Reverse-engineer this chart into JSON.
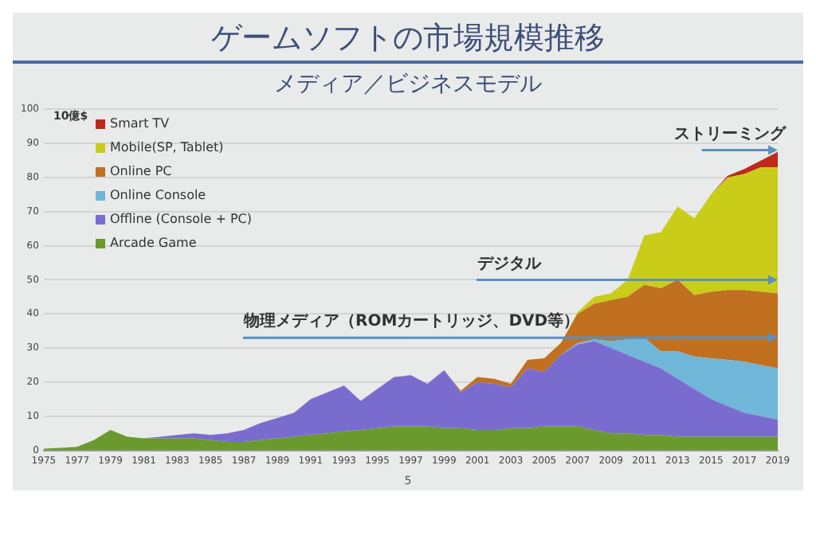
{
  "chart_data": {
    "type": "area",
    "title": "ゲームソフトの市場規模推移",
    "subtitle": "メディア／ビジネスモデル",
    "ylabel": "10億$",
    "stacked": true,
    "x": [
      1975,
      1976,
      1977,
      1978,
      1979,
      1980,
      1981,
      1982,
      1983,
      1984,
      1985,
      1986,
      1987,
      1988,
      1989,
      1990,
      1991,
      1992,
      1993,
      1994,
      1995,
      1996,
      1997,
      1998,
      1999,
      2000,
      2001,
      2002,
      2003,
      2004,
      2005,
      2006,
      2007,
      2008,
      2009,
      2010,
      2011,
      2012,
      2013,
      2014,
      2015,
      2016,
      2017,
      2018,
      2019
    ],
    "xlim": [
      1975,
      2019
    ],
    "xticks": [
      1975,
      1977,
      1979,
      1981,
      1983,
      1985,
      1987,
      1989,
      1991,
      1993,
      1995,
      1997,
      1999,
      2001,
      2003,
      2005,
      2007,
      2009,
      2011,
      2013,
      2015,
      2017,
      2019
    ],
    "ylim": [
      0,
      100
    ],
    "yticks": [
      0,
      10,
      20,
      30,
      40,
      50,
      60,
      70,
      80,
      90,
      100
    ],
    "grid": "y",
    "legend": "top left",
    "series": [
      {
        "name": "Arcade Game",
        "color": "#6a9a2e",
        "values": [
          0.5,
          0.7,
          1,
          3,
          6,
          4,
          3.5,
          3.5,
          3.5,
          3.5,
          3,
          2.5,
          2.5,
          3,
          3.5,
          4,
          4.5,
          5,
          5.5,
          6,
          6.5,
          7,
          7,
          7,
          6.5,
          6.5,
          6,
          6,
          6.5,
          6.5,
          7,
          7,
          7,
          6,
          5,
          5,
          4.5,
          4.5,
          4,
          4,
          4,
          4,
          4,
          4,
          4
        ]
      },
      {
        "name": "Offline (Console + PC)",
        "color": "#7a6ccf",
        "values": [
          0,
          0,
          0,
          0,
          0,
          0,
          0,
          0.5,
          1,
          1.5,
          1.5,
          2.5,
          3.5,
          5,
          6,
          7,
          10.5,
          12,
          13.5,
          8.5,
          11.5,
          14.5,
          15,
          12.5,
          17,
          10.5,
          14,
          13.5,
          12,
          17.5,
          16,
          21,
          24,
          26,
          25,
          23,
          21.5,
          19.5,
          17,
          14,
          11,
          9,
          7,
          6,
          5
        ]
      },
      {
        "name": "Online Console",
        "color": "#6fb6d8",
        "values": [
          0,
          0,
          0,
          0,
          0,
          0,
          0,
          0,
          0,
          0,
          0,
          0,
          0,
          0,
          0,
          0,
          0,
          0,
          0,
          0,
          0,
          0,
          0,
          0,
          0,
          0,
          0,
          0,
          0,
          0,
          0,
          0,
          0.5,
          0.5,
          2,
          4.5,
          7,
          5,
          8,
          9.5,
          12,
          13.5,
          15,
          15,
          15
        ]
      },
      {
        "name": "Online PC",
        "color": "#c0701e",
        "values": [
          0,
          0,
          0,
          0,
          0,
          0,
          0,
          0,
          0,
          0,
          0,
          0,
          0,
          0,
          0,
          0,
          0,
          0,
          0,
          0,
          0,
          0,
          0,
          0,
          0,
          0.5,
          1.5,
          1.5,
          1,
          2.5,
          4,
          3.5,
          8.5,
          10.5,
          12,
          12.5,
          15.5,
          18.5,
          21,
          18,
          19.5,
          20.5,
          21,
          21.5,
          22
        ]
      },
      {
        "name": "Mobile(SP, Tablet)",
        "color": "#c9cd1a",
        "values": [
          0,
          0,
          0,
          0,
          0,
          0,
          0,
          0,
          0,
          0,
          0,
          0,
          0,
          0,
          0,
          0,
          0,
          0,
          0,
          0,
          0,
          0,
          0,
          0,
          0,
          0,
          0,
          0,
          0,
          0,
          0,
          0,
          0.5,
          2,
          2,
          5,
          14.5,
          16.5,
          21.5,
          22.5,
          28.5,
          33,
          34,
          36.5,
          37
        ]
      },
      {
        "name": "Smart TV",
        "color": "#c0281c",
        "values": [
          0,
          0,
          0,
          0,
          0,
          0,
          0,
          0,
          0,
          0,
          0,
          0,
          0,
          0,
          0,
          0,
          0,
          0,
          0,
          0,
          0,
          0,
          0,
          0,
          0,
          0,
          0,
          0,
          0,
          0,
          0,
          0,
          0,
          0,
          0,
          0,
          0,
          0,
          0,
          0,
          0,
          0.5,
          1.5,
          2,
          4.5
        ]
      }
    ],
    "annotations": [
      "ストリーミング",
      "デジタル",
      "物理メディア（ROMカートリッジ、DVD等）",
      "5"
    ]
  }
}
